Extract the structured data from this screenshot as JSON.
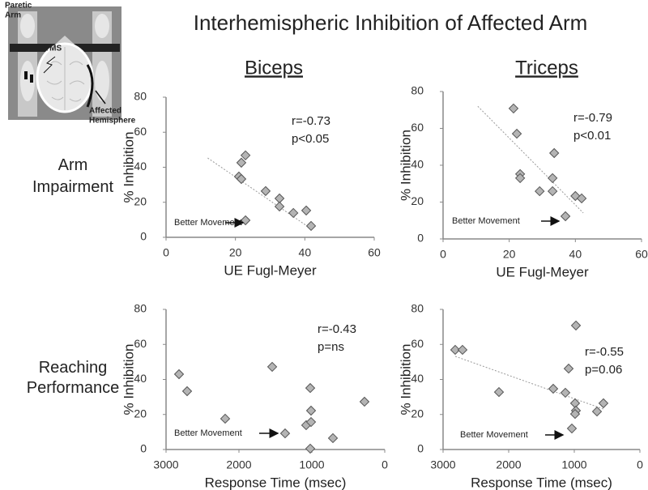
{
  "title": "Interhemispheric Inhibition of Affected Arm",
  "columns": [
    "Biceps",
    "Triceps"
  ],
  "rows": [
    "Arm Impairment",
    "Reaching Performance"
  ],
  "illustration": {
    "paretic_arm": [
      "Paretic",
      "Arm"
    ],
    "tms": "TMS",
    "affected_hemisphere": [
      "Affected",
      "Hemisphere"
    ]
  },
  "chart_data": [
    {
      "type": "scatter",
      "x_label": "UE Fugl-Meyer",
      "y_label": "% Inhibition",
      "color": "#b4b4b4",
      "x": [
        22.9,
        21.7,
        21,
        21.7,
        28.7,
        32.7,
        32.7,
        36.7,
        40.4,
        41.8,
        22.9
      ],
      "values": [
        46.8,
        42.6,
        34.7,
        33.3,
        26.4,
        22.2,
        17.6,
        13.9,
        15.3,
        6.5,
        9.7
      ],
      "xlim": [
        0,
        60
      ],
      "ylim": [
        0,
        80
      ],
      "xticks": [
        0,
        20,
        40,
        60
      ],
      "yticks": [
        0,
        20,
        40,
        60,
        80
      ],
      "trend": {
        "x": [
          12,
          42
        ],
        "y": [
          45.3,
          4.6
        ]
      },
      "annotations": [
        "r=-0.73",
        "p<0.05"
      ],
      "note": "Better Movement"
    },
    {
      "type": "scatter",
      "x_label": "UE Fugl-Meyer",
      "y_label": "% Inhibition",
      "color": "#b4b4b4",
      "x": [
        21.3,
        22.3,
        33.6,
        23.3,
        23.3,
        33.1,
        29.2,
        33.1,
        40,
        41.9,
        37
      ],
      "values": [
        70.8,
        57.1,
        46.6,
        35.2,
        33,
        33,
        25.9,
        25.9,
        23.3,
        22,
        12.3
      ],
      "xlim": [
        0,
        60
      ],
      "ylim": [
        0,
        80
      ],
      "xticks": [
        0,
        20,
        40,
        60
      ],
      "yticks": [
        0,
        20,
        40,
        60,
        80
      ],
      "trend": {
        "x": [
          10.5,
          42.4
        ],
        "y": [
          72,
          14.1
        ]
      },
      "annotations": [
        "r=-0.79",
        "p<0.01"
      ],
      "note": "Better Movement"
    },
    {
      "type": "scatter",
      "x_label": "Response Time (msec)",
      "y_label": "% Inhibition",
      "color": "#b4b4b4",
      "x": [
        2822,
        2711,
        2189,
        1544,
        1022,
        1011,
        1078,
        1367,
        1011,
        1022,
        711,
        278
      ],
      "values": [
        43,
        33.3,
        17.6,
        47.2,
        35.1,
        22.2,
        13.9,
        9.2,
        15.7,
        0.5,
        6.5,
        27.3
      ],
      "xlim": [
        3000,
        0
      ],
      "ylim": [
        0,
        80
      ],
      "xticks": [
        3000,
        2000,
        1000,
        0
      ],
      "yticks": [
        0,
        20,
        40,
        60,
        80
      ],
      "annotations": [
        "r=-0.43",
        "p=ns"
      ],
      "note": "Better Movement"
    },
    {
      "type": "scatter",
      "x_label": "Response Time (msec)",
      "y_label": "% Inhibition",
      "color": "#b4b4b4",
      "x": [
        2815,
        2704,
        2148,
        1321,
        1136,
        1086,
        975,
        988,
        975,
        988,
        1037,
        654,
        556
      ],
      "values": [
        56.9,
        56.9,
        32.8,
        34.7,
        32.4,
        46.2,
        70.8,
        26.4,
        22.2,
        20.3,
        12,
        21.7,
        26.4
      ],
      "xlim": [
        3000,
        0
      ],
      "ylim": [
        0,
        80
      ],
      "xticks": [
        3000,
        2000,
        1000,
        0
      ],
      "yticks": [
        0,
        20,
        40,
        60,
        80
      ],
      "trend": {
        "x": [
          2815,
          556
        ],
        "y": [
          53.2,
          23.1
        ]
      },
      "annotations": [
        "r=-0.55",
        "p=0.06"
      ],
      "note": "Better Movement"
    }
  ]
}
